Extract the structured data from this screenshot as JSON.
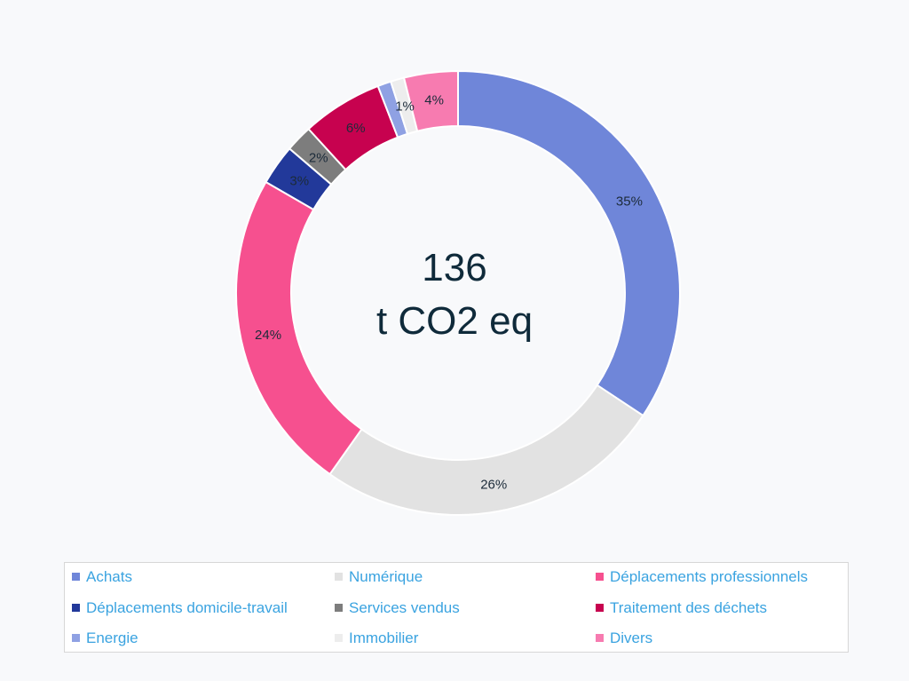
{
  "chart_data": {
    "type": "pie",
    "donut": true,
    "center_label": [
      "136",
      "t CO2 eq"
    ],
    "legend_position": "bottom",
    "slices": [
      {
        "name": "Achats",
        "value": 35,
        "label": "35%",
        "color": "#6f86d9"
      },
      {
        "name": "Numérique",
        "value": 26,
        "label": "26%",
        "color": "#e2e2e2"
      },
      {
        "name": "Déplacements professionnels",
        "value": 24,
        "label": "24%",
        "color": "#f6508f"
      },
      {
        "name": "Déplacements domicile-travail",
        "value": 3,
        "label": "3%",
        "color": "#22399a"
      },
      {
        "name": "Services vendus",
        "value": 2,
        "label": "2%",
        "color": "#7d7d7d"
      },
      {
        "name": "Traitement des déchets",
        "value": 6,
        "label": "6%",
        "color": "#c7024f"
      },
      {
        "name": "Energie",
        "value": 1,
        "label": "",
        "color": "#8fa1e3"
      },
      {
        "name": "Immobilier",
        "value": 1,
        "label": "1%",
        "color": "#ededed"
      },
      {
        "name": "Divers",
        "value": 4,
        "label": "4%",
        "color": "#f77bb0"
      }
    ]
  }
}
